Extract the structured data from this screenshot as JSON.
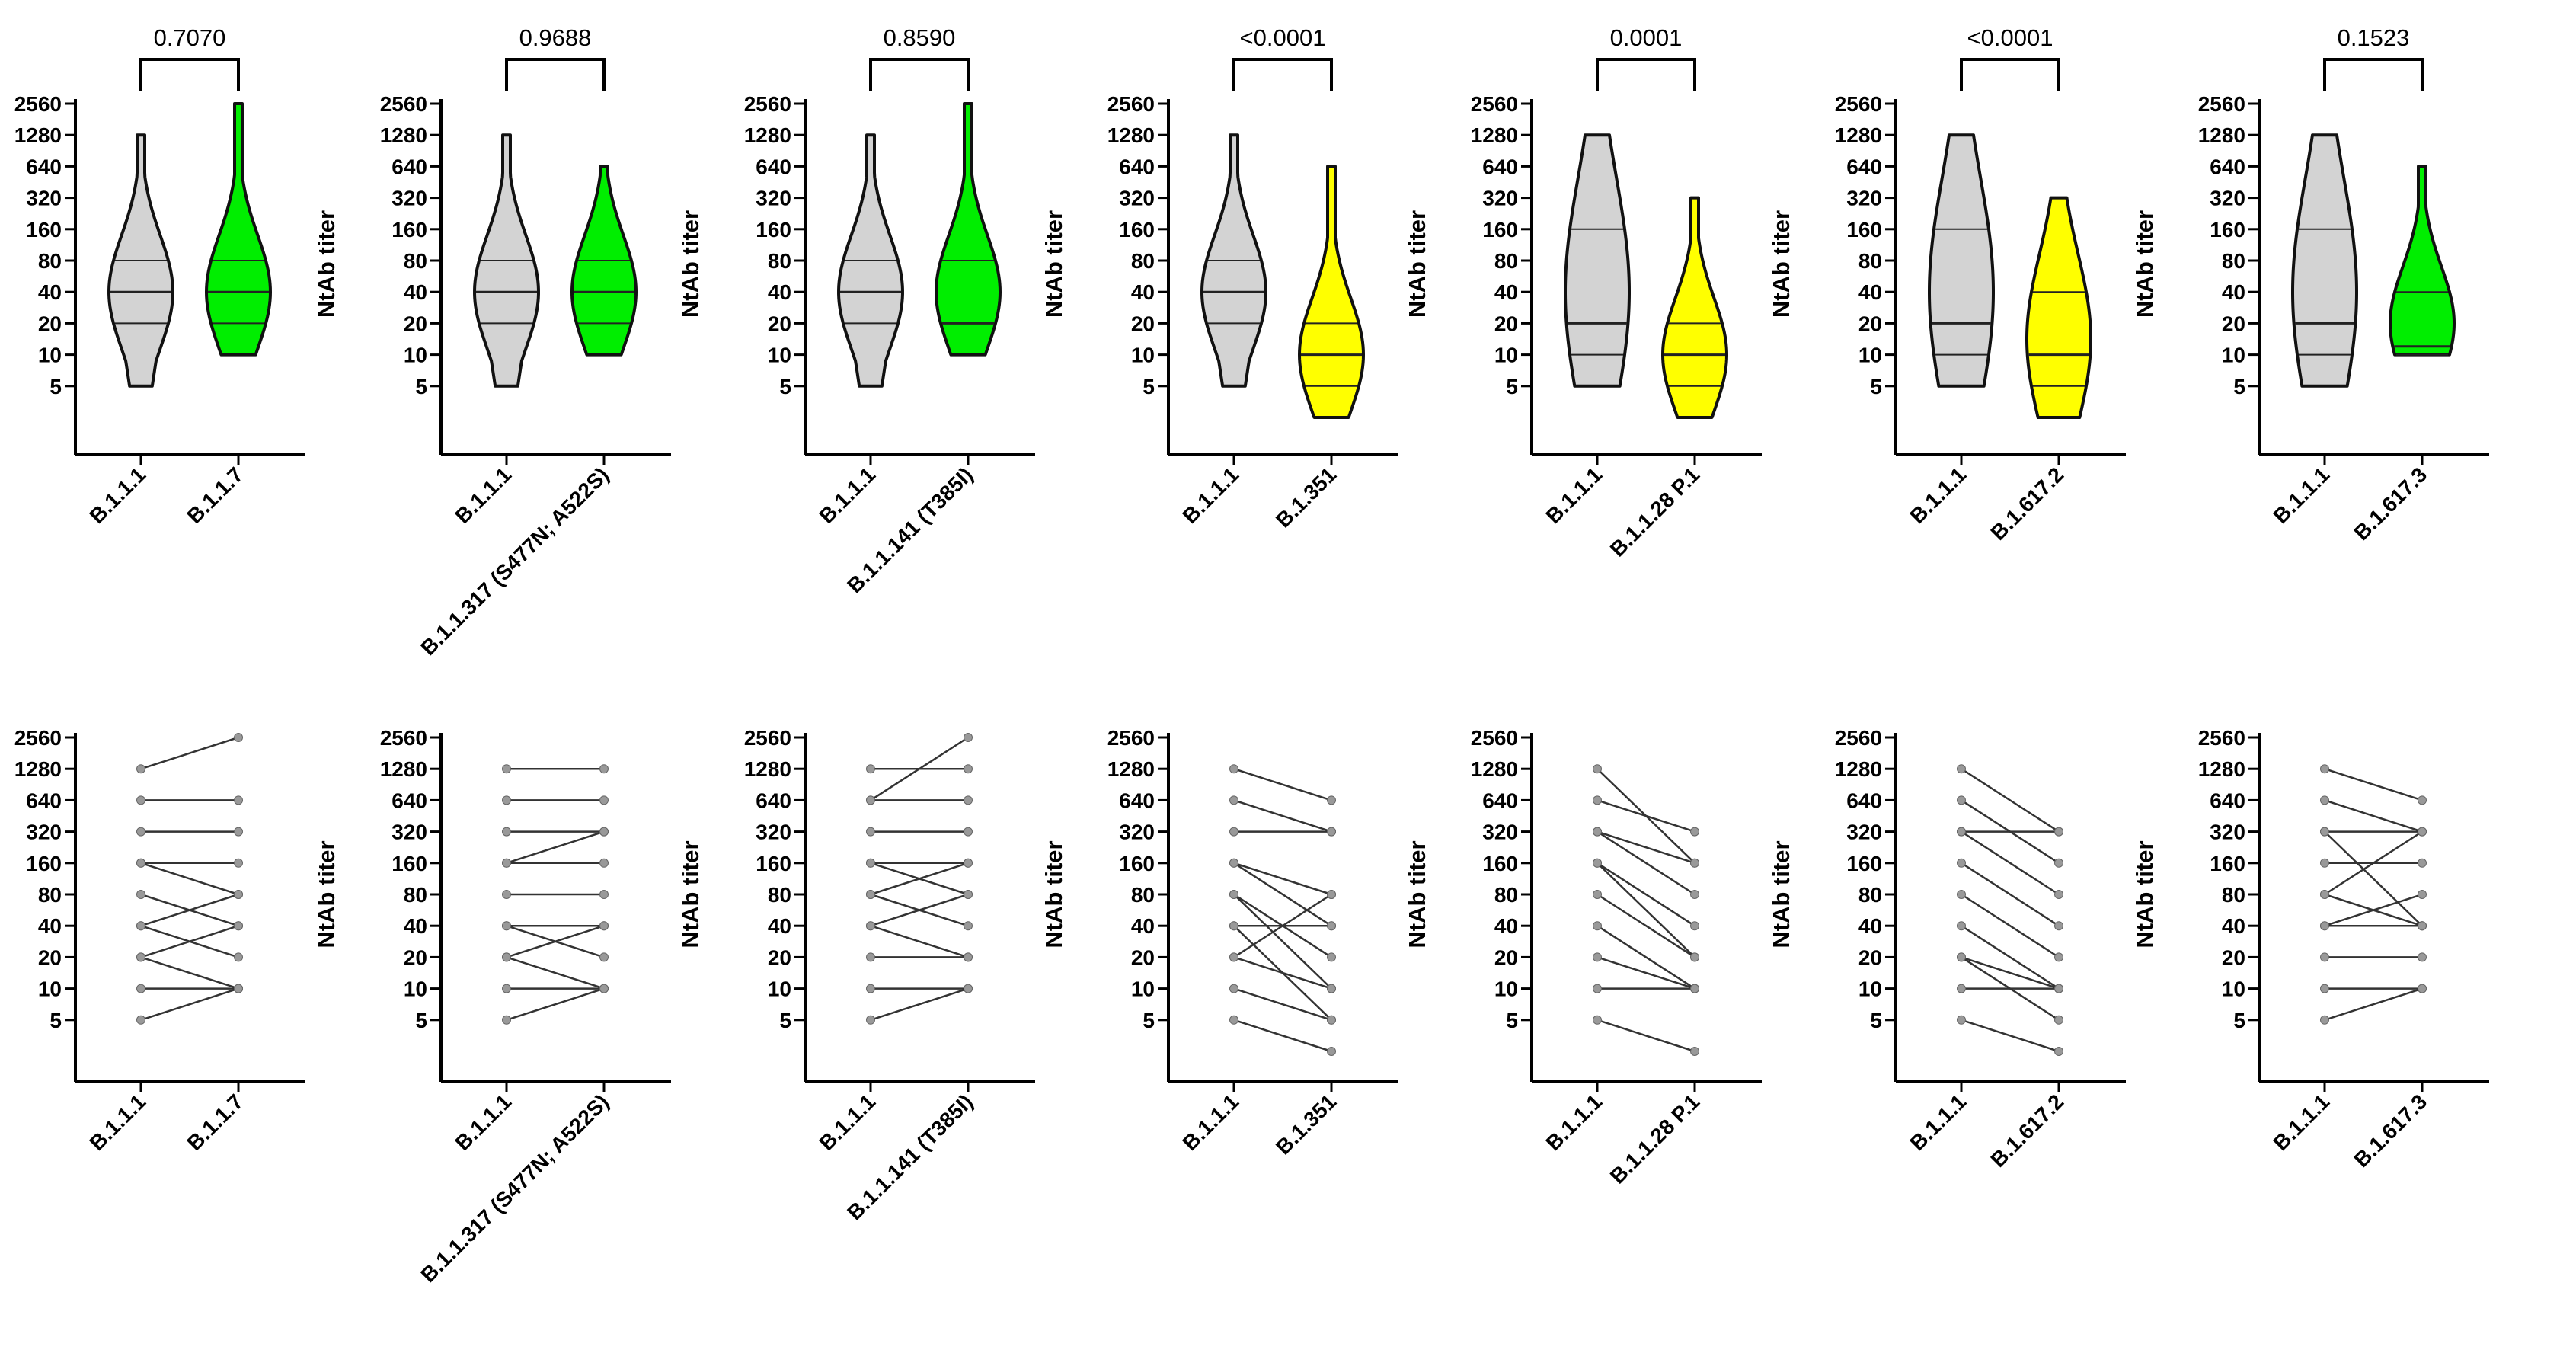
{
  "chart_data": {
    "type": "violin",
    "y_scale": "log2",
    "y_ticks": [
      "2560",
      "1280",
      "640",
      "320",
      "160",
      "80",
      "40",
      "20",
      "10",
      "5"
    ],
    "ylabel": "NtAb titer",
    "reference_group": "B.1.1.1",
    "colors": {
      "reference": "#d3d3d3",
      "green": "#00ee00",
      "yellow": "#ffff00",
      "pair_line": "#333333"
    },
    "panels": [
      {
        "variant": "B.1.1.7",
        "p_value": "0.7070",
        "fill": "green",
        "violins": [
          {
            "group": "B.1.1.1",
            "min": 5,
            "q1": 20,
            "median": 40,
            "q3": 80,
            "max": 1280
          },
          {
            "group": "B.1.1.7",
            "min": 10,
            "q1": 20,
            "median": 40,
            "q3": 80,
            "max": 2560
          }
        ],
        "pairs": [
          [
            1280,
            2560
          ],
          [
            640,
            640
          ],
          [
            320,
            320
          ],
          [
            160,
            160
          ],
          [
            160,
            80
          ],
          [
            80,
            40
          ],
          [
            40,
            80
          ],
          [
            40,
            20
          ],
          [
            20,
            40
          ],
          [
            20,
            10
          ],
          [
            10,
            10
          ],
          [
            5,
            10
          ]
        ]
      },
      {
        "variant": "B.1.1.317 (S477N; A522S)",
        "p_value": "0.9688",
        "fill": "green",
        "violins": [
          {
            "group": "B.1.1.1",
            "min": 5,
            "q1": 20,
            "median": 40,
            "q3": 80,
            "max": 1280
          },
          {
            "group": "B.1.1.317 (S477N; A522S)",
            "min": 10,
            "q1": 20,
            "median": 40,
            "q3": 80,
            "max": 640
          }
        ],
        "pairs": [
          [
            1280,
            1280
          ],
          [
            640,
            640
          ],
          [
            320,
            320
          ],
          [
            160,
            320
          ],
          [
            160,
            160
          ],
          [
            80,
            80
          ],
          [
            40,
            40
          ],
          [
            40,
            20
          ],
          [
            20,
            40
          ],
          [
            20,
            10
          ],
          [
            10,
            10
          ],
          [
            5,
            10
          ]
        ]
      },
      {
        "variant": "B.1.1.141 (T385I)",
        "p_value": "0.8590",
        "fill": "green",
        "violins": [
          {
            "group": "B.1.1.1",
            "min": 5,
            "q1": 20,
            "median": 40,
            "q3": 80,
            "max": 1280
          },
          {
            "group": "B.1.1.141 (T385I)",
            "min": 10,
            "q1": 20,
            "median": 20,
            "q3": 80,
            "max": 2560
          }
        ],
        "pairs": [
          [
            1280,
            1280
          ],
          [
            640,
            2560
          ],
          [
            640,
            640
          ],
          [
            320,
            320
          ],
          [
            160,
            160
          ],
          [
            160,
            80
          ],
          [
            80,
            40
          ],
          [
            80,
            160
          ],
          [
            40,
            80
          ],
          [
            40,
            20
          ],
          [
            20,
            20
          ],
          [
            10,
            10
          ],
          [
            5,
            10
          ]
        ]
      },
      {
        "variant": "B.1.351",
        "p_value": "<0.0001",
        "fill": "yellow",
        "violins": [
          {
            "group": "B.1.1.1",
            "min": 5,
            "q1": 20,
            "median": 40,
            "q3": 80,
            "max": 1280
          },
          {
            "group": "B.1.351",
            "min": 2.5,
            "q1": 5,
            "median": 10,
            "q3": 20,
            "max": 640
          }
        ],
        "pairs": [
          [
            1280,
            640
          ],
          [
            640,
            320
          ],
          [
            320,
            320
          ],
          [
            160,
            80
          ],
          [
            160,
            40
          ],
          [
            80,
            20
          ],
          [
            80,
            10
          ],
          [
            40,
            40
          ],
          [
            40,
            5
          ],
          [
            20,
            10
          ],
          [
            20,
            80
          ],
          [
            10,
            5
          ],
          [
            5,
            2.5
          ]
        ]
      },
      {
        "variant": "B.1.1.28 P.1",
        "p_value": "0.0001",
        "fill": "yellow",
        "violins": [
          {
            "group": "B.1.1.1",
            "min": 5,
            "q1": 10,
            "median": 20,
            "q3": 160,
            "max": 1280
          },
          {
            "group": "B.1.1.28 P.1",
            "min": 2.5,
            "q1": 5,
            "median": 10,
            "q3": 20,
            "max": 320
          }
        ],
        "pairs": [
          [
            1280,
            160
          ],
          [
            640,
            320
          ],
          [
            320,
            80
          ],
          [
            320,
            160
          ],
          [
            160,
            40
          ],
          [
            160,
            20
          ],
          [
            80,
            20
          ],
          [
            40,
            10
          ],
          [
            20,
            10
          ],
          [
            10,
            10
          ],
          [
            5,
            2.5
          ]
        ]
      },
      {
        "variant": "B.1.617.2",
        "p_value": "<0.0001",
        "fill": "yellow",
        "violins": [
          {
            "group": "B.1.1.1",
            "min": 5,
            "q1": 10,
            "median": 20,
            "q3": 160,
            "max": 1280
          },
          {
            "group": "B.1.617.2",
            "min": 2.5,
            "q1": 5,
            "median": 10,
            "q3": 40,
            "max": 320
          }
        ],
        "pairs": [
          [
            1280,
            320
          ],
          [
            640,
            160
          ],
          [
            320,
            80
          ],
          [
            320,
            320
          ],
          [
            160,
            40
          ],
          [
            80,
            20
          ],
          [
            40,
            10
          ],
          [
            20,
            10
          ],
          [
            20,
            5
          ],
          [
            10,
            10
          ],
          [
            5,
            2.5
          ]
        ]
      },
      {
        "variant": "B.1.617.3",
        "p_value": "0.1523",
        "fill": "green",
        "violins": [
          {
            "group": "B.1.1.1",
            "min": 5,
            "q1": 10,
            "median": 20,
            "q3": 160,
            "max": 1280
          },
          {
            "group": "B.1.617.3",
            "min": 10,
            "q1": 10,
            "median": 12,
            "q3": 40,
            "max": 640
          }
        ],
        "pairs": [
          [
            1280,
            640
          ],
          [
            640,
            320
          ],
          [
            320,
            320
          ],
          [
            320,
            40
          ],
          [
            160,
            160
          ],
          [
            80,
            320
          ],
          [
            80,
            40
          ],
          [
            40,
            80
          ],
          [
            40,
            40
          ],
          [
            20,
            20
          ],
          [
            10,
            10
          ],
          [
            5,
            10
          ]
        ]
      }
    ]
  }
}
